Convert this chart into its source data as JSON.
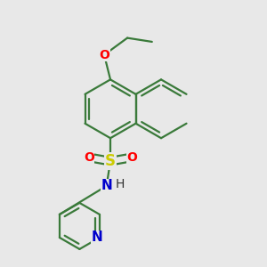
{
  "background_color": "#e8e8e8",
  "bond_color": "#3a7a3a",
  "bond_lw": 1.6,
  "S_color": "#cccc00",
  "O_color": "#ff0000",
  "N_color": "#0000cc",
  "figsize": [
    3.0,
    3.0
  ],
  "dpi": 100,
  "xlim": [
    -1.6,
    1.6
  ],
  "ylim": [
    -1.8,
    1.6
  ]
}
